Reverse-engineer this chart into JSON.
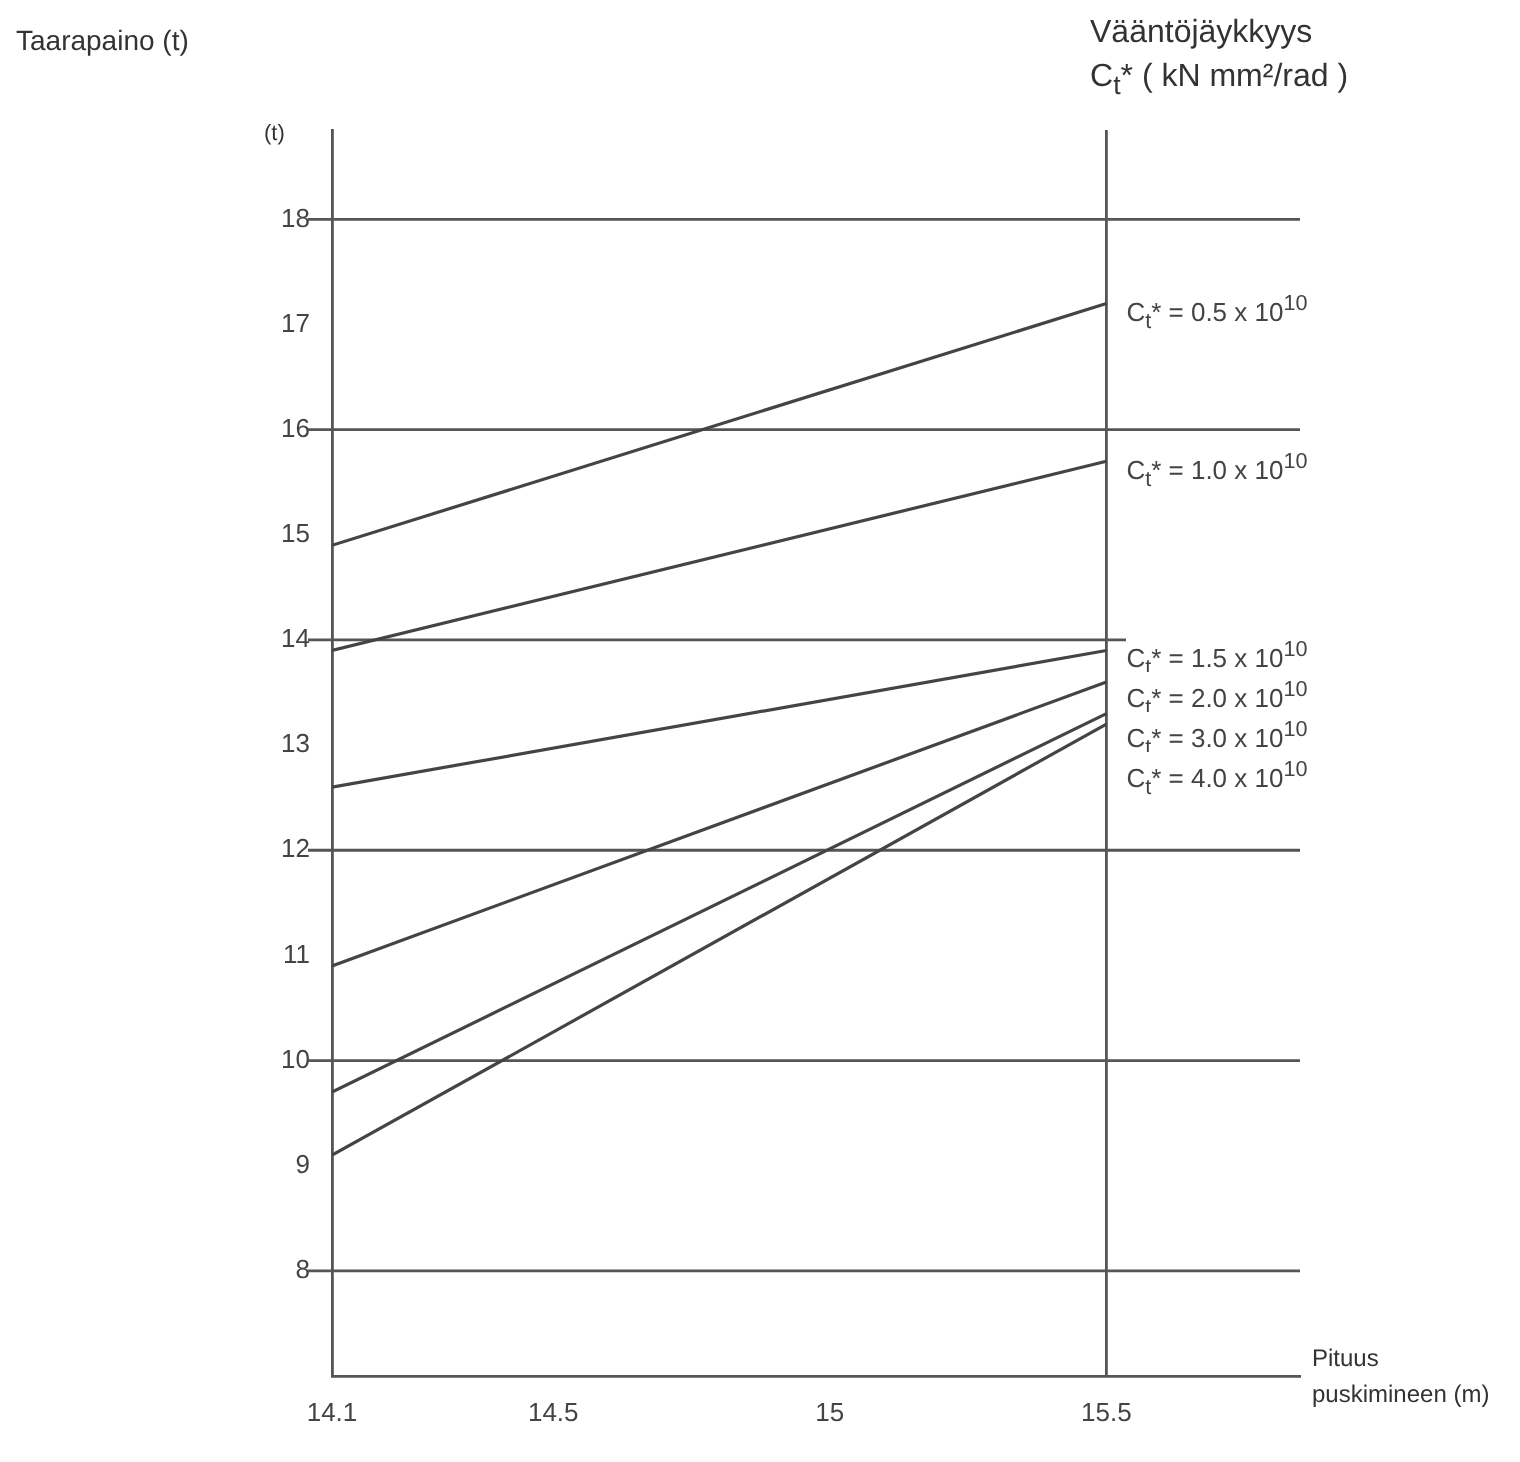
{
  "chart_data": {
    "type": "line",
    "ylabel": "Taarapaino (t)",
    "xlabel": "Pituus puskimineen (m)",
    "annotations": [
      "(t)",
      "Vääntöjäykkyys C$_{t}$* ( kN mm²/rad )"
    ],
    "x": [
      14.1,
      15.5
    ],
    "series": [
      {
        "name": "C$_{t}$* = 0.5 x 10$^{10}$",
        "color": "#444444",
        "values": [
          14.9,
          17.2
        ]
      },
      {
        "name": "C$_{t}$* = 1.0 x 10$^{10}$",
        "color": "#444444",
        "values": [
          13.9,
          15.7
        ]
      },
      {
        "name": "C$_{t}$* = 1.5 x 10$^{10}$",
        "color": "#444444",
        "values": [
          12.6,
          13.9
        ]
      },
      {
        "name": "C$_{t}$* = 2.0 x 10$^{10}$",
        "color": "#444444",
        "values": [
          10.9,
          13.6
        ]
      },
      {
        "name": "C$_{t}$* = 3.0 x 10$^{10}$",
        "color": "#444444",
        "values": [
          9.7,
          13.3
        ]
      },
      {
        "name": "C$_{t}$* = 4.0 x 10$^{10}$",
        "color": "#444444",
        "values": [
          9.1,
          13.2
        ]
      }
    ],
    "xlim": [
      14.1,
      15.85
    ],
    "xticks": [
      14.1,
      14.5,
      15,
      15.5
    ],
    "ylim": [
      7,
      18.85
    ],
    "yticks": [
      8,
      9,
      10,
      11,
      12,
      13,
      14,
      15,
      16,
      17,
      18
    ],
    "ref_lines": [
      {
        "axis": "x",
        "value": 15.5
      },
      {
        "axis": "y",
        "value": 8
      },
      {
        "axis": "y",
        "value": 10
      },
      {
        "axis": "y",
        "value": 12
      },
      {
        "axis": "y",
        "value": 14
      },
      {
        "axis": "y",
        "value": 16
      },
      {
        "axis": "y",
        "value": 18
      }
    ],
    "grid": false,
    "marker": "none",
    "line_style": "solid"
  }
}
